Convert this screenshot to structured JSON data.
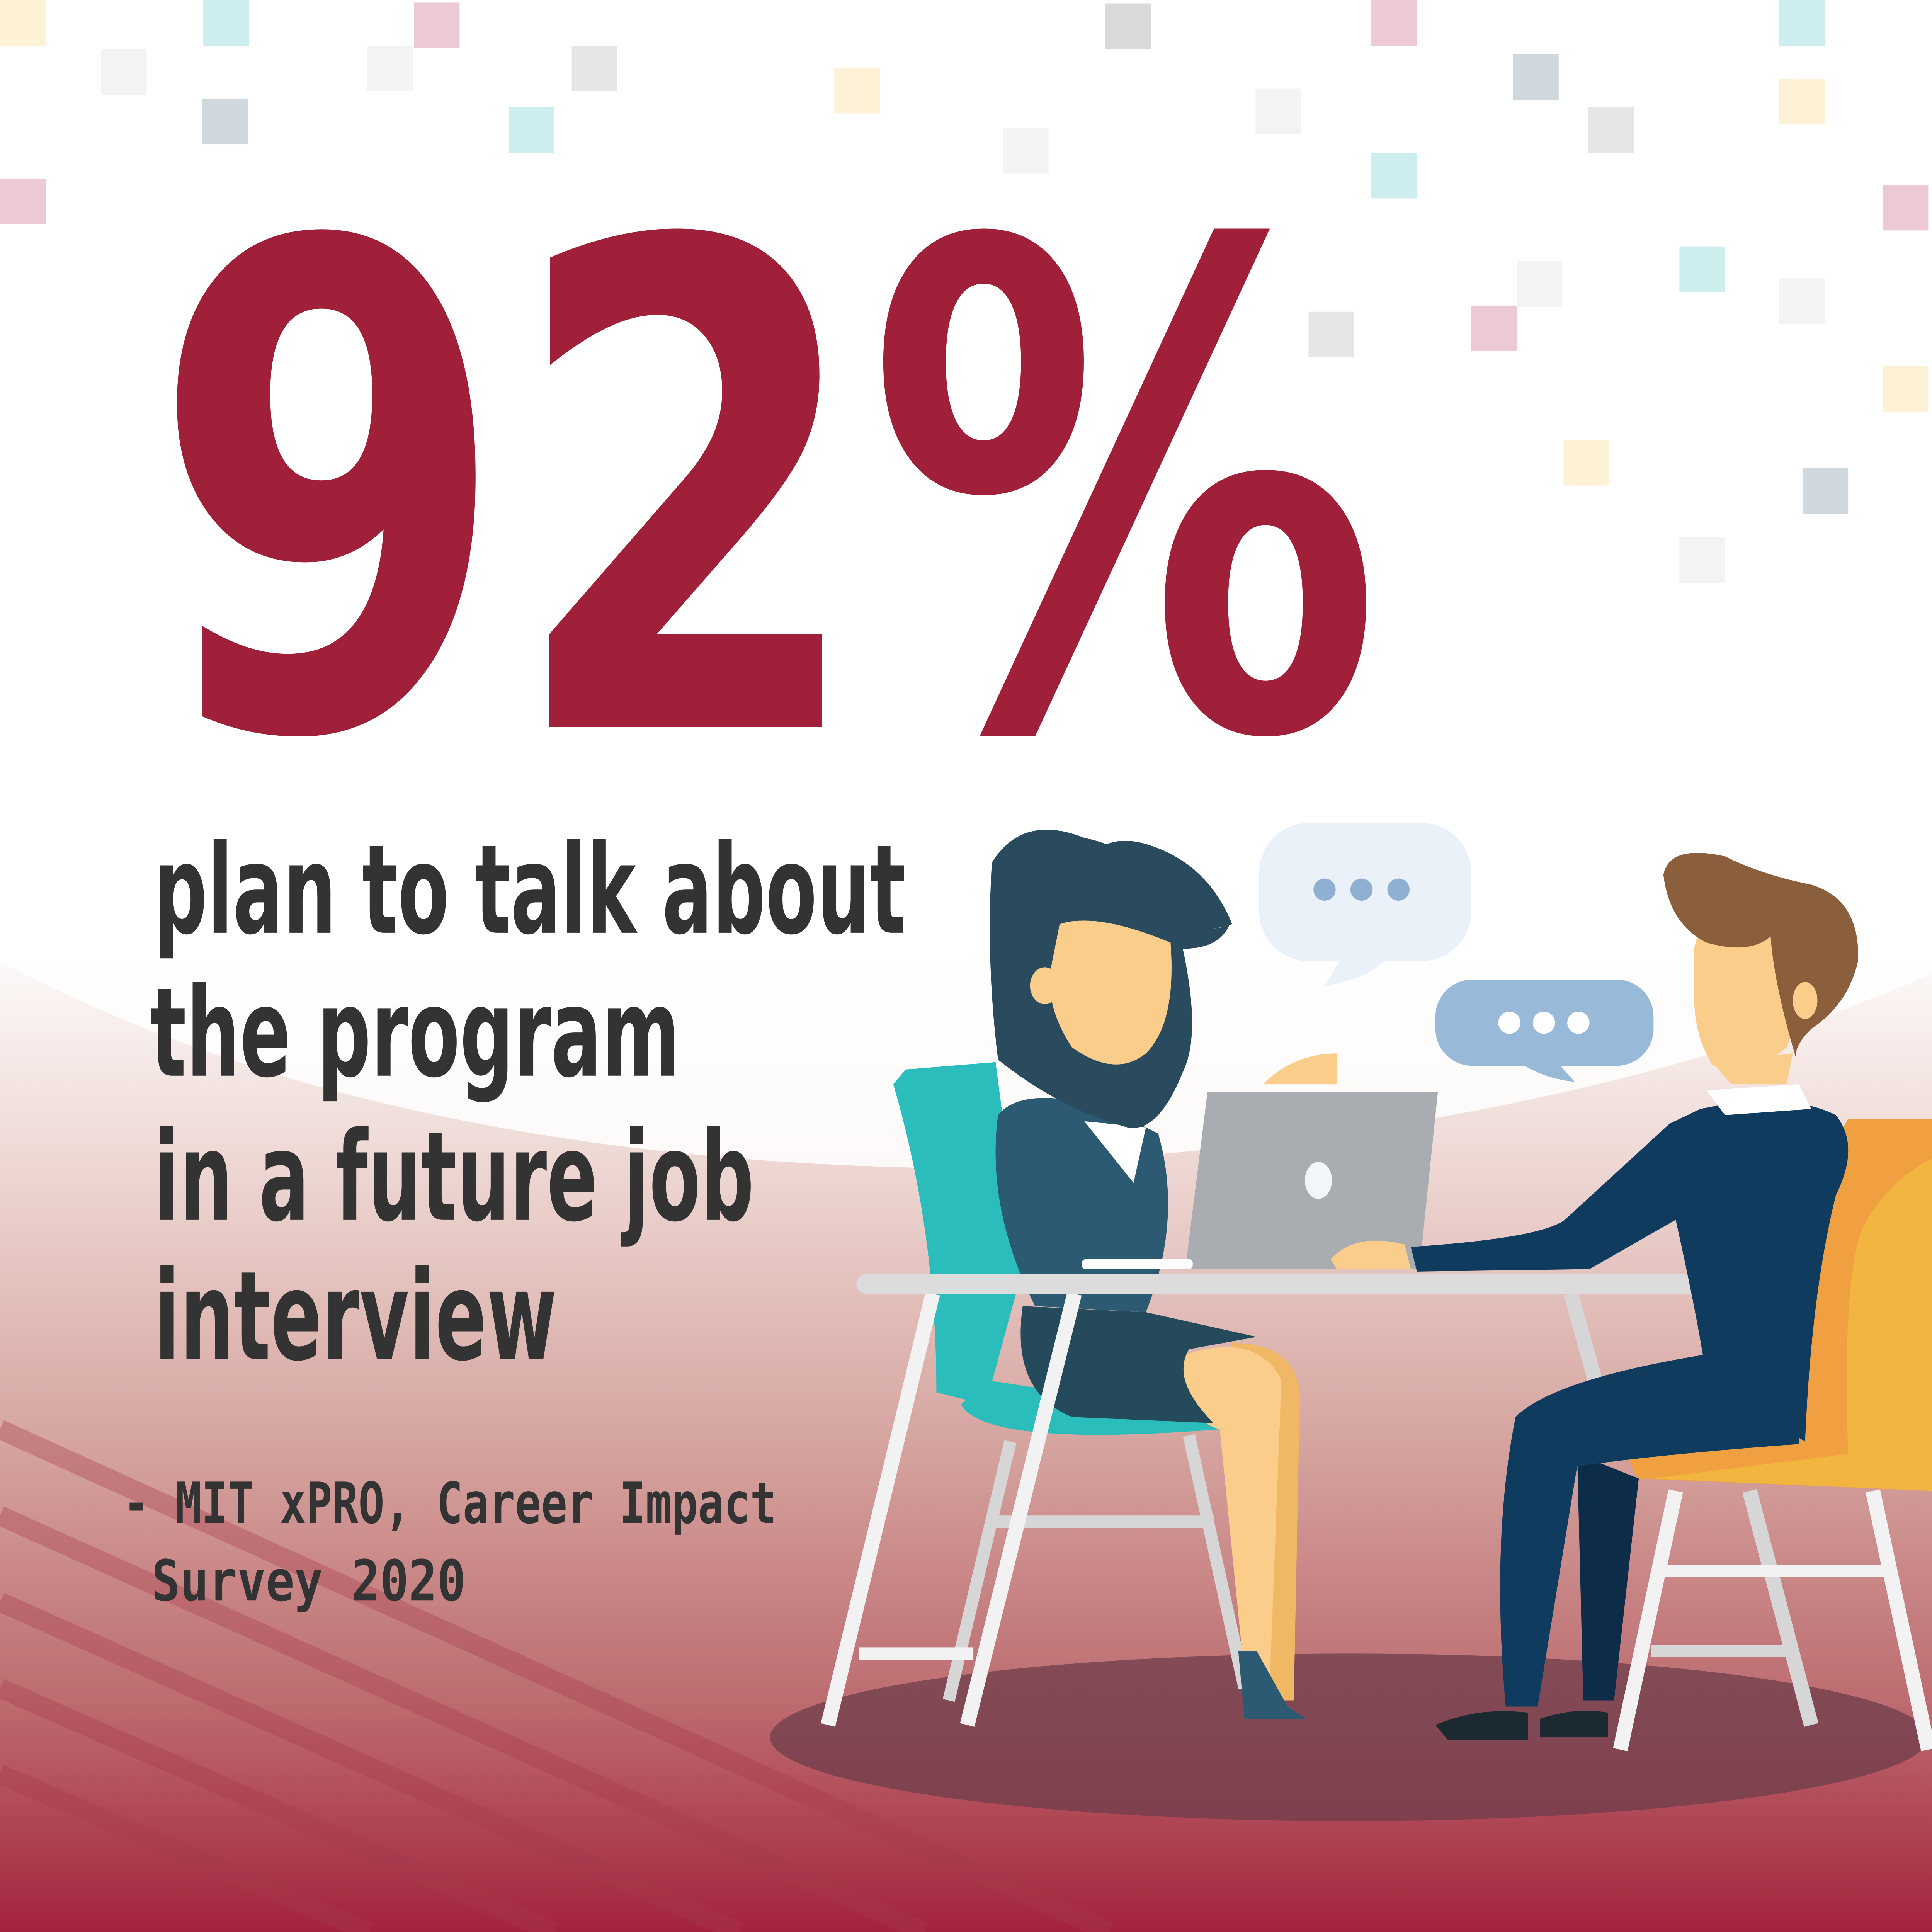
{
  "headline": {
    "value": "92%"
  },
  "statement": {
    "lines": [
      "plan to talk about",
      "the program",
      "in a future job",
      "interview"
    ]
  },
  "citation": {
    "lines": [
      "- MIT xPRO, Career Impact",
      "Survey 2020"
    ]
  },
  "illustration": {
    "description_icons": [
      "speech-bubble-icon",
      "speech-bubble-icon",
      "laptop-icon"
    ]
  },
  "colors": {
    "accent": "#a02039",
    "text": "#333333",
    "bubble_light": "#eaf1f8",
    "bubble_blue": "#99b9d9",
    "teal_chair": "#2bbcbc",
    "yellow_chair": "#f2b53f"
  }
}
